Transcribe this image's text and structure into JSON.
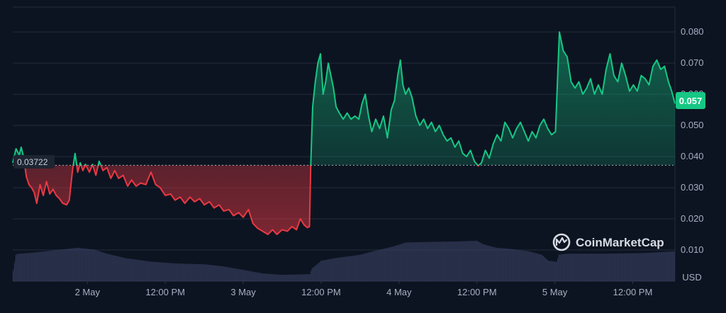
{
  "chart_data": {
    "type": "line",
    "title": "",
    "xlabel": "",
    "ylabel": "",
    "y_unit": "USD",
    "ylim": [
      0,
      0.088
    ],
    "y_ticks": [
      "0.010",
      "0.020",
      "0.030",
      "0.040",
      "0.050",
      "0.060",
      "0.070",
      "0.080"
    ],
    "x_ticks": [
      "2 May",
      "12:00 PM",
      "3 May",
      "12:00 PM",
      "4 May",
      "12:00 PM",
      "5 May",
      "12:00 PM"
    ],
    "x_range_hours": [
      -11.5,
      90.5
    ],
    "x_tick_hours": [
      0,
      12,
      24,
      36,
      48,
      60,
      72,
      84
    ],
    "reference": {
      "label": "0.03722",
      "value": 0.03722
    },
    "last_price": {
      "label": "0.057",
      "value": 0.057
    },
    "colors": {
      "up": "#16c784",
      "down": "#ea3943",
      "grid": "#222c3d",
      "volume": "#3a4266",
      "badge_up": "#16c784",
      "reference_badge": "#1e2532"
    },
    "watermark": "CoinMarketCap",
    "grid": true,
    "series": [
      {
        "points": [
          [
            -11.5,
            0.038
          ],
          [
            -11.0,
            0.0425
          ],
          [
            -10.5,
            0.0405
          ],
          [
            -10.2,
            0.043
          ],
          [
            -9.8,
            0.0395
          ],
          [
            -9.4,
            0.0335
          ],
          [
            -9.0,
            0.031
          ],
          [
            -8.6,
            0.03
          ],
          [
            -8.2,
            0.0285
          ],
          [
            -7.8,
            0.025
          ],
          [
            -7.3,
            0.031
          ],
          [
            -6.8,
            0.0275
          ],
          [
            -6.3,
            0.032
          ],
          [
            -5.8,
            0.028
          ],
          [
            -5.3,
            0.0295
          ],
          [
            -4.8,
            0.0275
          ],
          [
            -4.3,
            0.0265
          ],
          [
            -3.8,
            0.025
          ],
          [
            -3.2,
            0.0245
          ],
          [
            -2.8,
            0.026
          ],
          [
            -2.3,
            0.0355
          ],
          [
            -1.9,
            0.041
          ],
          [
            -1.5,
            0.035
          ],
          [
            -1.1,
            0.038
          ],
          [
            -0.7,
            0.0355
          ],
          [
            -0.3,
            0.0375
          ],
          [
            0.3,
            0.035
          ],
          [
            0.8,
            0.0375
          ],
          [
            1.3,
            0.034
          ],
          [
            1.8,
            0.0385
          ],
          [
            2.4,
            0.0355
          ],
          [
            3.0,
            0.0365
          ],
          [
            3.6,
            0.033
          ],
          [
            4.2,
            0.0355
          ],
          [
            4.8,
            0.033
          ],
          [
            5.5,
            0.034
          ],
          [
            6.2,
            0.0305
          ],
          [
            6.8,
            0.0325
          ],
          [
            7.5,
            0.0305
          ],
          [
            8.2,
            0.0315
          ],
          [
            9.0,
            0.031
          ],
          [
            9.8,
            0.035
          ],
          [
            10.5,
            0.031
          ],
          [
            11.2,
            0.03
          ],
          [
            12.0,
            0.0275
          ],
          [
            12.8,
            0.028
          ],
          [
            13.5,
            0.026
          ],
          [
            14.3,
            0.027
          ],
          [
            15.0,
            0.025
          ],
          [
            15.8,
            0.027
          ],
          [
            16.5,
            0.0255
          ],
          [
            17.3,
            0.0265
          ],
          [
            18.0,
            0.0245
          ],
          [
            18.8,
            0.0255
          ],
          [
            19.5,
            0.0235
          ],
          [
            20.3,
            0.0245
          ],
          [
            21.0,
            0.0225
          ],
          [
            21.8,
            0.023
          ],
          [
            22.5,
            0.021
          ],
          [
            23.3,
            0.022
          ],
          [
            24.0,
            0.0205
          ],
          [
            24.8,
            0.023
          ],
          [
            25.5,
            0.0185
          ],
          [
            26.2,
            0.017
          ],
          [
            27.0,
            0.016
          ],
          [
            27.8,
            0.015
          ],
          [
            28.5,
            0.0165
          ],
          [
            29.2,
            0.015
          ],
          [
            30.0,
            0.0165
          ],
          [
            30.8,
            0.016
          ],
          [
            31.5,
            0.0175
          ],
          [
            32.2,
            0.0165
          ],
          [
            32.8,
            0.02
          ],
          [
            33.4,
            0.018
          ],
          [
            33.9,
            0.0172
          ],
          [
            34.2,
            0.0175
          ],
          [
            34.4,
            0.0372
          ],
          [
            34.7,
            0.056
          ],
          [
            35.1,
            0.064
          ],
          [
            35.5,
            0.07
          ],
          [
            35.9,
            0.073
          ],
          [
            36.3,
            0.06
          ],
          [
            36.7,
            0.064
          ],
          [
            37.1,
            0.07
          ],
          [
            37.5,
            0.066
          ],
          [
            37.9,
            0.062
          ],
          [
            38.3,
            0.056
          ],
          [
            38.8,
            0.054
          ],
          [
            39.4,
            0.052
          ],
          [
            40.0,
            0.054
          ],
          [
            40.6,
            0.052
          ],
          [
            41.2,
            0.053
          ],
          [
            41.8,
            0.052
          ],
          [
            42.3,
            0.057
          ],
          [
            42.8,
            0.06
          ],
          [
            43.3,
            0.053
          ],
          [
            43.8,
            0.048
          ],
          [
            44.4,
            0.052
          ],
          [
            45.0,
            0.049
          ],
          [
            45.6,
            0.053
          ],
          [
            46.2,
            0.046
          ],
          [
            46.8,
            0.055
          ],
          [
            47.3,
            0.058
          ],
          [
            47.8,
            0.066
          ],
          [
            48.2,
            0.071
          ],
          [
            48.6,
            0.063
          ],
          [
            49.0,
            0.06
          ],
          [
            49.5,
            0.062
          ],
          [
            50.0,
            0.059
          ],
          [
            50.6,
            0.053
          ],
          [
            51.2,
            0.05
          ],
          [
            51.8,
            0.052
          ],
          [
            52.4,
            0.049
          ],
          [
            53.0,
            0.051
          ],
          [
            53.6,
            0.048
          ],
          [
            54.2,
            0.05
          ],
          [
            54.8,
            0.047
          ],
          [
            55.4,
            0.045
          ],
          [
            56.0,
            0.046
          ],
          [
            56.6,
            0.043
          ],
          [
            57.2,
            0.045
          ],
          [
            57.8,
            0.041
          ],
          [
            58.4,
            0.04
          ],
          [
            59.0,
            0.042
          ],
          [
            59.6,
            0.0385
          ],
          [
            60.2,
            0.037
          ],
          [
            60.7,
            0.038
          ],
          [
            61.3,
            0.042
          ],
          [
            61.9,
            0.0395
          ],
          [
            62.5,
            0.044
          ],
          [
            63.1,
            0.047
          ],
          [
            63.7,
            0.045
          ],
          [
            64.3,
            0.051
          ],
          [
            64.9,
            0.049
          ],
          [
            65.5,
            0.046
          ],
          [
            66.1,
            0.049
          ],
          [
            66.7,
            0.051
          ],
          [
            67.3,
            0.048
          ],
          [
            67.9,
            0.045
          ],
          [
            68.5,
            0.048
          ],
          [
            69.1,
            0.046
          ],
          [
            69.7,
            0.05
          ],
          [
            70.3,
            0.052
          ],
          [
            70.9,
            0.049
          ],
          [
            71.5,
            0.047
          ],
          [
            72.1,
            0.048
          ],
          [
            72.7,
            0.08
          ],
          [
            73.3,
            0.074
          ],
          [
            73.9,
            0.072
          ],
          [
            74.5,
            0.064
          ],
          [
            75.1,
            0.062
          ],
          [
            75.7,
            0.064
          ],
          [
            76.3,
            0.06
          ],
          [
            76.9,
            0.062
          ],
          [
            77.5,
            0.065
          ],
          [
            78.1,
            0.06
          ],
          [
            78.7,
            0.063
          ],
          [
            79.3,
            0.06
          ],
          [
            79.9,
            0.068
          ],
          [
            80.5,
            0.073
          ],
          [
            81.1,
            0.066
          ],
          [
            81.7,
            0.064
          ],
          [
            82.3,
            0.07
          ],
          [
            82.9,
            0.066
          ],
          [
            83.5,
            0.061
          ],
          [
            84.1,
            0.063
          ],
          [
            84.7,
            0.061
          ],
          [
            85.3,
            0.066
          ],
          [
            85.9,
            0.065
          ],
          [
            86.5,
            0.063
          ],
          [
            87.1,
            0.069
          ],
          [
            87.7,
            0.071
          ],
          [
            88.3,
            0.068
          ],
          [
            88.9,
            0.069
          ],
          [
            89.5,
            0.064
          ],
          [
            90.0,
            0.061
          ],
          [
            90.5,
            0.057
          ]
        ]
      }
    ],
    "volume": {
      "points": [
        [
          -11.5,
          0.24
        ],
        [
          -11.0,
          0.77
        ],
        [
          -8.0,
          0.82
        ],
        [
          -4.0,
          0.9
        ],
        [
          -1.5,
          0.95
        ],
        [
          1.0,
          0.9
        ],
        [
          3.0,
          0.78
        ],
        [
          6.0,
          0.65
        ],
        [
          10.0,
          0.55
        ],
        [
          14.0,
          0.5
        ],
        [
          18.0,
          0.48
        ],
        [
          21.0,
          0.42
        ],
        [
          24.0,
          0.32
        ],
        [
          27.0,
          0.22
        ],
        [
          30.0,
          0.18
        ],
        [
          34.3,
          0.2
        ],
        [
          34.5,
          0.35
        ],
        [
          36.0,
          0.58
        ],
        [
          38.0,
          0.65
        ],
        [
          42.0,
          0.75
        ],
        [
          44.0,
          0.85
        ],
        [
          47.0,
          0.98
        ],
        [
          49.0,
          1.1
        ],
        [
          53.0,
          1.12
        ],
        [
          57.0,
          1.13
        ],
        [
          60.0,
          1.15
        ],
        [
          61.0,
          1.05
        ],
        [
          63.0,
          0.95
        ],
        [
          65.0,
          0.92
        ],
        [
          68.0,
          0.85
        ],
        [
          70.0,
          0.75
        ],
        [
          71.0,
          0.58
        ],
        [
          72.3,
          0.55
        ],
        [
          72.6,
          0.75
        ],
        [
          74.0,
          0.78
        ],
        [
          80.0,
          0.78
        ],
        [
          86.0,
          0.8
        ],
        [
          90.5,
          0.85
        ]
      ],
      "max": 1.15
    }
  }
}
